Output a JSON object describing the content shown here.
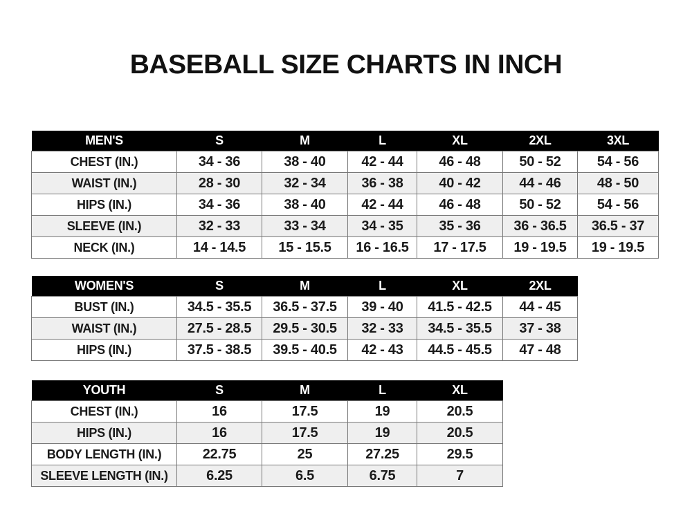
{
  "title": "BASEBALL SIZE CHARTS IN INCH",
  "tables": [
    {
      "id": "men",
      "headers": [
        "MEN'S",
        "S",
        "M",
        "L",
        "XL",
        "2XL",
        "3XL"
      ],
      "rows": [
        [
          "CHEST (IN.)",
          "34 - 36",
          "38 - 40",
          "42 - 44",
          "46 - 48",
          "50 - 52",
          "54 - 56"
        ],
        [
          "WAIST (IN.)",
          "28 - 30",
          "32 - 34",
          "36 - 38",
          "40 - 42",
          "44 - 46",
          "48 - 50"
        ],
        [
          "HIPS (IN.)",
          "34 - 36",
          "38 - 40",
          "42 - 44",
          "46 - 48",
          "50 - 52",
          "54 - 56"
        ],
        [
          "SLEEVE (IN.)",
          "32 - 33",
          "33 - 34",
          "34 - 35",
          "35 - 36",
          "36 - 36.5",
          "36.5 - 37"
        ],
        [
          "NECK (IN.)",
          "14 - 14.5",
          "15 - 15.5",
          "16 - 16.5",
          "17 - 17.5",
          "19 - 19.5",
          "19 - 19.5"
        ]
      ]
    },
    {
      "id": "women",
      "headers": [
        "WOMEN'S",
        "S",
        "M",
        "L",
        "XL",
        "2XL"
      ],
      "rows": [
        [
          "BUST (IN.)",
          "34.5 - 35.5",
          "36.5 - 37.5",
          "39 - 40",
          "41.5 - 42.5",
          "44 - 45"
        ],
        [
          "WAIST (IN.)",
          "27.5 - 28.5",
          "29.5 - 30.5",
          "32 - 33",
          "34.5 - 35.5",
          "37 - 38"
        ],
        [
          "HIPS (IN.)",
          "37.5 - 38.5",
          "39.5 - 40.5",
          "42 - 43",
          "44.5 - 45.5",
          "47 - 48"
        ]
      ]
    },
    {
      "id": "youth",
      "headers": [
        "YOUTH",
        "S",
        "M",
        "L",
        "XL"
      ],
      "rows": [
        [
          "CHEST (IN.)",
          "16",
          "17.5",
          "19",
          "20.5"
        ],
        [
          "HIPS (IN.)",
          "16",
          "17.5",
          "19",
          "20.5"
        ],
        [
          "BODY LENGTH (IN.)",
          "22.75",
          "25",
          "27.25",
          "29.5"
        ],
        [
          "SLEEVE LENGTH (IN.)",
          "6.25",
          "6.5",
          "6.75",
          "7"
        ]
      ]
    }
  ]
}
